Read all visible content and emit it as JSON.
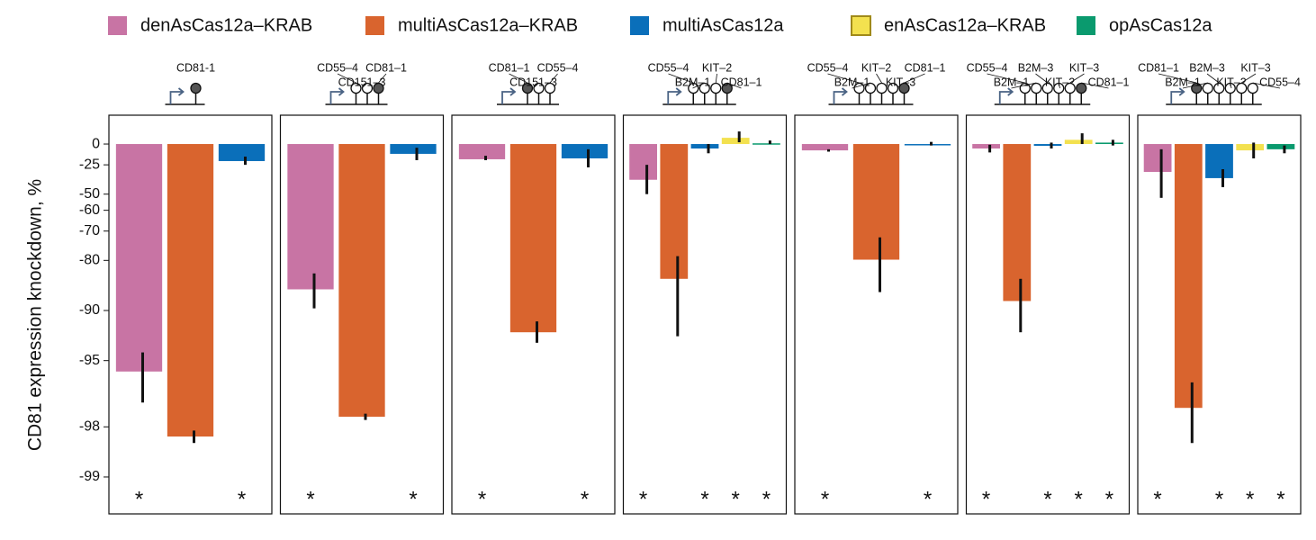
{
  "chart_data": {
    "type": "bar",
    "ylabel": "CD81 expression knockdown, %",
    "yscale": "log",
    "ylim": [
      -99.4,
      49
    ],
    "yticks": [
      0,
      -25,
      -50,
      -60,
      -70,
      -80,
      -90,
      -95,
      -98,
      -99
    ],
    "panels": [
      {
        "guides": [
          "CD81-1"
        ]
      },
      {
        "guides": [
          "CD55–4",
          "CD151–3",
          "CD81–1"
        ]
      },
      {
        "guides": [
          "CD81–1",
          "CD151–3",
          "CD55–4"
        ]
      },
      {
        "guides": [
          "CD55–4",
          "B2M–1",
          "KIT–2",
          "CD81–1"
        ]
      },
      {
        "guides": [
          "CD55–4",
          "B2M–1",
          "KIT–2",
          "KIT–3",
          "CD81–1"
        ]
      },
      {
        "guides": [
          "CD55–4",
          "B2M–1",
          "B2M–3",
          "KIT–2",
          "KIT–3",
          "CD81–1"
        ]
      },
      {
        "guides": [
          "CD81–1",
          "B2M–1",
          "B2M–3",
          "KIT–2",
          "KIT–3",
          "CD55–4"
        ]
      }
    ],
    "series": [
      {
        "name": "denAsCas12a–KRAB",
        "color": "#c874a4",
        "values": [
          -95.7,
          -86.6,
          -19,
          -39,
          -8.4,
          -6,
          -32
        ],
        "ci": [
          [
            -94.4,
            -97.2
          ],
          [
            -83.3,
            -89.7
          ],
          [
            -15,
            -20
          ],
          [
            -25,
            -50
          ],
          [
            -7,
            -10
          ],
          [
            -1,
            -11
          ],
          [
            -7,
            -52.5
          ]
        ],
        "significance": [
          "*",
          "*",
          "*",
          "*",
          "*",
          "*",
          "*"
        ]
      },
      {
        "name": "multiAsCas12a–KRAB",
        "color": "#d9642e",
        "values": [
          -98.25,
          -97.7,
          -92.6,
          -84.5,
          -79.8,
          -88.6,
          -97.4
        ],
        "ci": [
          [
            -98.1,
            -98.4
          ],
          [
            -97.6,
            -97.8
          ],
          [
            -91.4,
            -93.6
          ],
          [
            -78.8,
            -93
          ],
          [
            -72.5,
            -87.1
          ],
          [
            -84.5,
            -92.6
          ],
          [
            -96.3,
            -98.4
          ]
        ],
        "significance": [
          null,
          null,
          null,
          null,
          null,
          null,
          null
        ]
      },
      {
        "name": "multiAsCas12a",
        "color": "#0a6fba",
        "values": [
          -21,
          -12.7,
          -18,
          -6,
          -1,
          -2.5,
          -37.6
        ],
        "ci": [
          [
            -16,
            -25
          ],
          [
            -5,
            -20
          ],
          [
            -7,
            -27.6
          ],
          [
            0,
            -12
          ],
          [
            3,
            -2
          ],
          [
            2,
            -6
          ],
          [
            -29.4,
            -44.9
          ]
        ],
        "significance": [
          "*",
          "*",
          "*",
          "*",
          "*",
          "*",
          "*"
        ]
      },
      {
        "name": "enAsCas12a–KRAB",
        "color": "#f3e14f",
        "edge": "#a08a1a",
        "values": [
          null,
          null,
          null,
          9,
          null,
          6,
          -8.4
        ],
        "ci": [
          null,
          null,
          null,
          [
            19,
            2.5
          ],
          null,
          [
            16,
            0
          ],
          [
            2,
            -18
          ]
        ],
        "significance": [
          null,
          null,
          null,
          "*",
          null,
          "*",
          "*"
        ]
      },
      {
        "name": "opAsCas12a",
        "color": "#0a9a6e",
        "values": [
          null,
          null,
          null,
          1,
          null,
          2,
          -7
        ],
        "ci": [
          null,
          null,
          null,
          [
            5,
            0
          ],
          null,
          [
            6,
            -2
          ],
          [
            -2,
            -12
          ]
        ],
        "significance": [
          null,
          null,
          null,
          "*",
          null,
          "*",
          "*"
        ]
      }
    ]
  }
}
